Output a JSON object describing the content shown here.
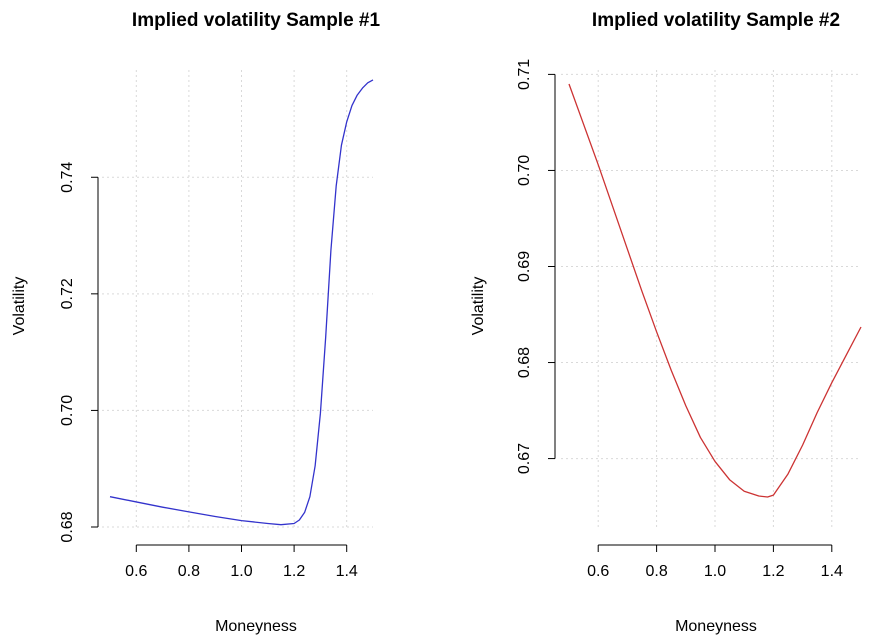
{
  "chart_data": [
    {
      "type": "line",
      "title": "Implied volatility Sample #1",
      "xlabel": "Moneyness",
      "ylabel": "Volatility",
      "xlim": [
        0.5,
        1.5
      ],
      "ylim": [
        0.68,
        0.756
      ],
      "x_ticks": [
        0.6,
        0.8,
        1.0,
        1.2,
        1.4
      ],
      "x_tick_labels": [
        "0.6",
        "0.8",
        "1.0",
        "1.2",
        "1.4"
      ],
      "y_ticks": [
        0.68,
        0.7,
        0.72,
        0.74
      ],
      "y_tick_labels": [
        "0.68",
        "0.70",
        "0.72",
        "0.74"
      ],
      "grid": true,
      "series": [
        {
          "color": "#3333cc",
          "x": [
            0.5,
            0.6,
            0.7,
            0.8,
            0.9,
            1.0,
            1.1,
            1.15,
            1.2,
            1.22,
            1.24,
            1.26,
            1.28,
            1.3,
            1.32,
            1.34,
            1.36,
            1.38,
            1.4,
            1.42,
            1.44,
            1.46,
            1.48,
            1.5
          ],
          "y": [
            0.6852,
            0.6843,
            0.6834,
            0.6826,
            0.6818,
            0.6811,
            0.6806,
            0.6804,
            0.6806,
            0.6812,
            0.6825,
            0.6852,
            0.6905,
            0.6995,
            0.7125,
            0.7275,
            0.7385,
            0.7455,
            0.7495,
            0.7523,
            0.7541,
            0.7553,
            0.7562,
            0.7567
          ]
        }
      ]
    },
    {
      "type": "line",
      "title": "Implied volatility Sample #2",
      "xlabel": "Moneyness",
      "ylabel": "Volatility",
      "xlim": [
        0.5,
        1.5
      ],
      "ylim": [
        0.666,
        0.709
      ],
      "x_ticks": [
        0.6,
        0.8,
        1.0,
        1.2,
        1.4
      ],
      "x_tick_labels": [
        "0.6",
        "0.8",
        "1.0",
        "1.2",
        "1.4"
      ],
      "y_ticks": [
        0.67,
        0.68,
        0.69,
        0.7,
        0.71
      ],
      "y_tick_labels": [
        "0.67",
        "0.68",
        "0.69",
        "0.70",
        "0.71"
      ],
      "grid": true,
      "series": [
        {
          "color": "#cc3333",
          "x": [
            0.5,
            0.55,
            0.6,
            0.65,
            0.7,
            0.75,
            0.8,
            0.85,
            0.9,
            0.95,
            1.0,
            1.05,
            1.1,
            1.15,
            1.18,
            1.2,
            1.25,
            1.3,
            1.35,
            1.4,
            1.45,
            1.5
          ],
          "y": [
            0.709,
            0.7048,
            0.7006,
            0.6962,
            0.6918,
            0.6874,
            0.6832,
            0.6792,
            0.6755,
            0.6722,
            0.6697,
            0.6678,
            0.6666,
            0.6661,
            0.666,
            0.6662,
            0.6684,
            0.6714,
            0.6748,
            0.6779,
            0.6808,
            0.6837
          ]
        }
      ]
    }
  ]
}
